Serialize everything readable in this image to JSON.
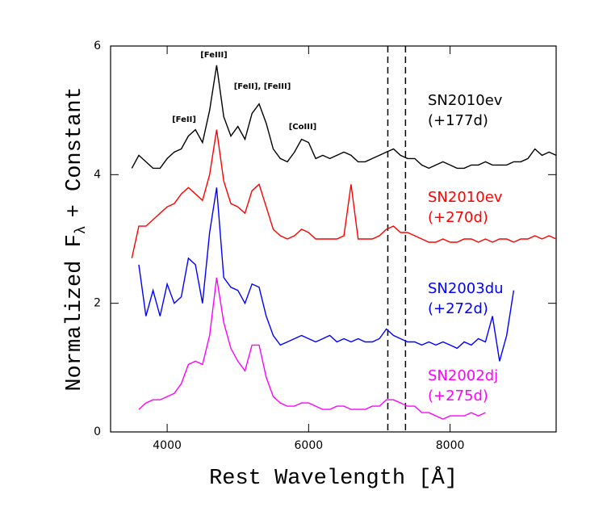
{
  "chart_data": {
    "type": "line",
    "xlabel": "Rest Wavelength [Å]",
    "ylabel": "Normalized F",
    "ylabel_sub": "λ",
    "ylabel_tail": "+ Constant",
    "xlim": [
      3200,
      9500
    ],
    "ylim": [
      0,
      6
    ],
    "xticks": [
      4000,
      6000,
      8000
    ],
    "yticks": [
      0,
      2,
      4,
      6
    ],
    "vlines": [
      7120,
      7370
    ],
    "vline_style": "dashed",
    "annotations": [
      "[FeII]",
      "[FeIII]",
      "[FeII], [FeIII]",
      "[CoIII]"
    ],
    "x": [
      3500,
      3600,
      3700,
      3800,
      3900,
      4000,
      4100,
      4200,
      4300,
      4400,
      4500,
      4600,
      4700,
      4800,
      4900,
      5000,
      5100,
      5200,
      5300,
      5400,
      5500,
      5600,
      5700,
      5800,
      5900,
      6000,
      6100,
      6200,
      6300,
      6400,
      6500,
      6600,
      6700,
      6800,
      6900,
      7000,
      7100,
      7200,
      7300,
      7400,
      7500,
      7600,
      7700,
      7800,
      7900,
      8000,
      8100,
      8200,
      8300,
      8400,
      8500,
      8600,
      8700,
      8800,
      8900,
      9000,
      9100,
      9200,
      9300,
      9400,
      9500
    ],
    "series": [
      {
        "name": "SN2010ev",
        "epoch": "(+177d)",
        "color": "#000000",
        "values": [
          4.1,
          4.3,
          4.2,
          4.1,
          4.1,
          4.25,
          4.35,
          4.4,
          4.6,
          4.7,
          4.5,
          5.0,
          5.7,
          4.9,
          4.6,
          4.75,
          4.55,
          4.95,
          5.1,
          4.8,
          4.4,
          4.25,
          4.2,
          4.35,
          4.55,
          4.5,
          4.25,
          4.3,
          4.25,
          4.3,
          4.35,
          4.3,
          4.2,
          4.2,
          4.25,
          4.3,
          4.35,
          4.4,
          4.3,
          4.25,
          4.25,
          4.15,
          4.1,
          4.15,
          4.2,
          4.15,
          4.1,
          4.1,
          4.15,
          4.15,
          4.2,
          4.15,
          4.15,
          4.15,
          4.2,
          4.2,
          4.25,
          4.4,
          4.3,
          4.35,
          4.3
        ]
      },
      {
        "name": "SN2010ev",
        "epoch": "(+270d)",
        "color": "#ff0000",
        "values": [
          2.7,
          3.2,
          3.2,
          3.3,
          3.4,
          3.5,
          3.55,
          3.7,
          3.8,
          3.7,
          3.6,
          4.0,
          4.7,
          3.9,
          3.55,
          3.5,
          3.4,
          3.75,
          3.85,
          3.5,
          3.15,
          3.05,
          3.0,
          3.05,
          3.15,
          3.1,
          3.0,
          3.0,
          3.0,
          3.0,
          3.05,
          3.85,
          3.0,
          3.0,
          3.0,
          3.05,
          3.15,
          3.2,
          3.1,
          3.1,
          3.05,
          3.0,
          2.95,
          2.95,
          3.0,
          2.95,
          2.95,
          3.0,
          3.0,
          2.95,
          3.0,
          2.95,
          3.0,
          3.0,
          2.95,
          3.0,
          3.0,
          3.05,
          3.0,
          3.05,
          3.0
        ]
      },
      {
        "name": "SN2003du",
        "epoch": "(+272d)",
        "color": "#0000ff",
        "values": [
          null,
          2.6,
          1.8,
          2.2,
          1.8,
          2.3,
          2.0,
          2.1,
          2.7,
          2.6,
          2.0,
          3.1,
          3.8,
          2.4,
          2.25,
          2.2,
          2.0,
          2.3,
          2.25,
          1.8,
          1.5,
          1.35,
          1.4,
          1.45,
          1.5,
          1.45,
          1.4,
          1.45,
          1.5,
          1.4,
          1.45,
          1.4,
          1.45,
          1.4,
          1.4,
          1.45,
          1.6,
          1.5,
          1.45,
          1.4,
          1.4,
          1.35,
          1.4,
          1.35,
          1.4,
          1.35,
          1.3,
          1.4,
          1.35,
          1.45,
          1.4,
          1.8,
          1.1,
          1.5,
          2.2,
          null,
          null,
          null,
          null,
          null,
          null
        ]
      },
      {
        "name": "SN2002dj",
        "epoch": "(+275d)",
        "color": "#ff00ff",
        "values": [
          null,
          0.35,
          0.45,
          0.5,
          0.5,
          0.55,
          0.6,
          0.75,
          1.05,
          1.1,
          1.05,
          1.5,
          2.4,
          1.7,
          1.3,
          1.1,
          0.95,
          1.35,
          1.35,
          0.85,
          0.55,
          0.45,
          0.4,
          0.4,
          0.45,
          0.45,
          0.4,
          0.35,
          0.35,
          0.4,
          0.4,
          0.35,
          0.35,
          0.35,
          0.4,
          0.4,
          0.5,
          0.5,
          0.45,
          0.4,
          0.4,
          0.3,
          0.3,
          0.25,
          0.2,
          0.25,
          0.25,
          0.25,
          0.3,
          0.25,
          0.3,
          null,
          null,
          null,
          null,
          null,
          null,
          null,
          null,
          null,
          null
        ]
      }
    ]
  }
}
